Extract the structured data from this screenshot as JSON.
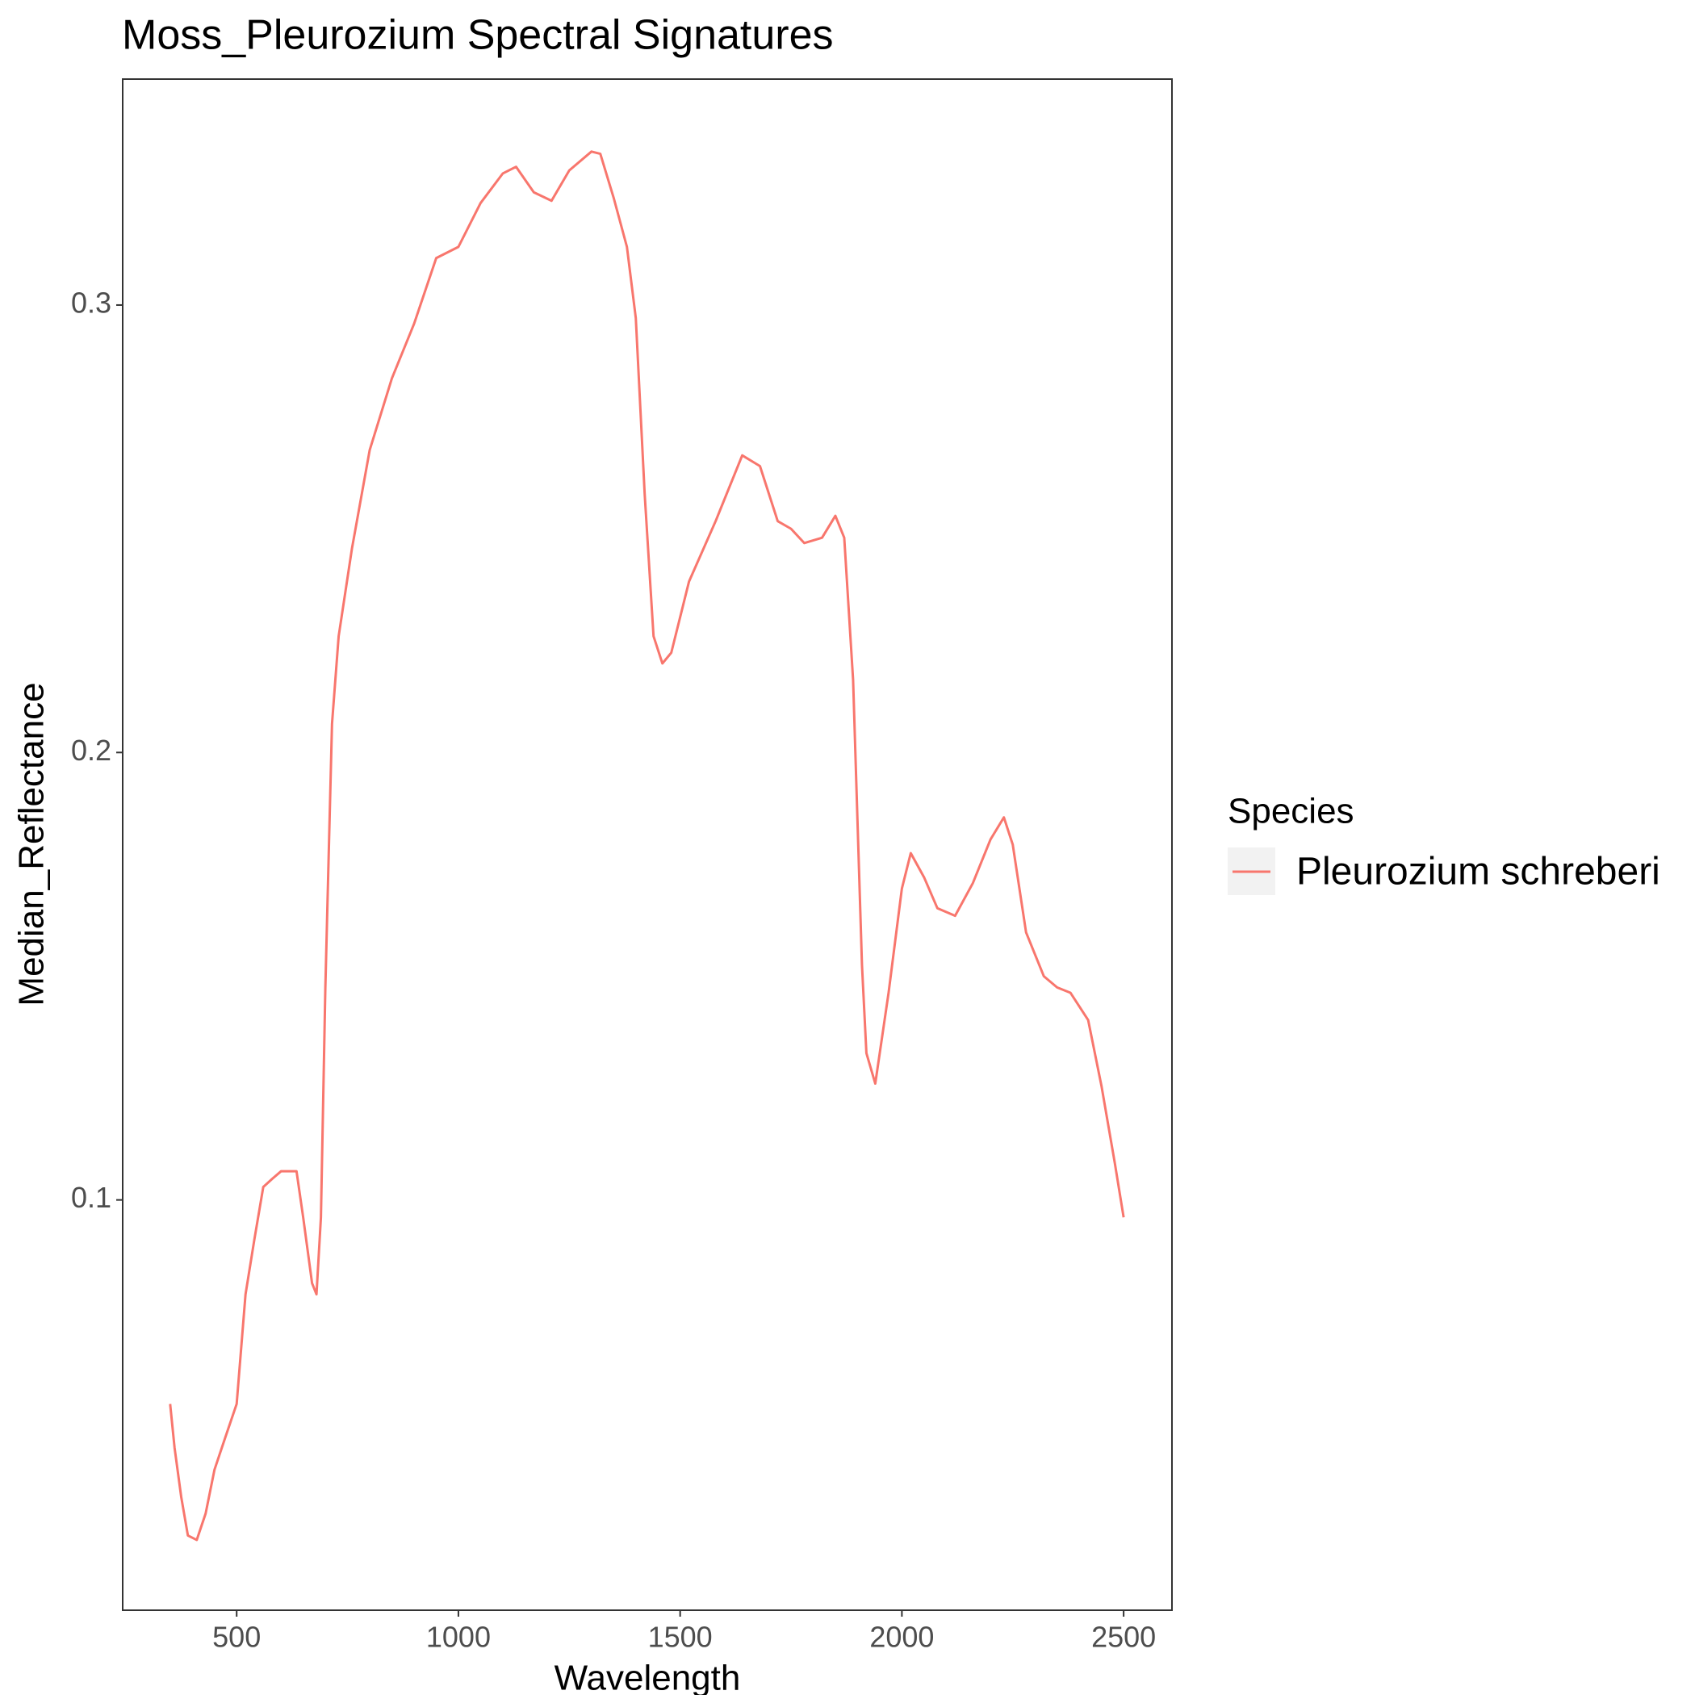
{
  "chart_data": {
    "type": "line",
    "title": "Moss_Pleurozium Spectral Signatures",
    "x_label": "Wavelength",
    "y_label": "Median_Reflectance",
    "legend_title": "Species",
    "x": [
      350,
      360,
      375,
      390,
      410,
      430,
      450,
      475,
      500,
      520,
      540,
      560,
      580,
      600,
      620,
      635,
      650,
      670,
      680,
      690,
      700,
      715,
      730,
      760,
      800,
      850,
      900,
      950,
      1000,
      1050,
      1100,
      1130,
      1170,
      1210,
      1250,
      1300,
      1320,
      1350,
      1380,
      1400,
      1420,
      1440,
      1460,
      1480,
      1520,
      1580,
      1640,
      1680,
      1720,
      1750,
      1780,
      1820,
      1850,
      1870,
      1890,
      1910,
      1920,
      1940,
      1970,
      2000,
      2020,
      2050,
      2080,
      2120,
      2160,
      2200,
      2230,
      2250,
      2280,
      2320,
      2350,
      2380,
      2420,
      2450,
      2480,
      2500
    ],
    "series": [
      {
        "name": "Pleurozium schreberi",
        "color": "#f8766d",
        "values": [
          0.0544,
          0.0446,
          0.0336,
          0.025,
          0.024,
          0.0299,
          0.0397,
          0.0471,
          0.0544,
          0.0789,
          0.0912,
          0.1029,
          0.1047,
          0.1064,
          0.1064,
          0.1064,
          0.0961,
          0.0814,
          0.0789,
          0.0961,
          0.1475,
          0.2064,
          0.226,
          0.2456,
          0.2676,
          0.2836,
          0.2958,
          0.3105,
          0.313,
          0.3228,
          0.3294,
          0.3309,
          0.3252,
          0.3233,
          0.3301,
          0.3343,
          0.3338,
          0.324,
          0.313,
          0.2971,
          0.2578,
          0.226,
          0.2199,
          0.2223,
          0.2382,
          0.2517,
          0.2664,
          0.264,
          0.2517,
          0.25,
          0.2468,
          0.248,
          0.2529,
          0.248,
          0.2162,
          0.1525,
          0.1328,
          0.126,
          0.1463,
          0.1696,
          0.1775,
          0.1721,
          0.1652,
          0.1635,
          0.1708,
          0.1806,
          0.1855,
          0.1794,
          0.1598,
          0.15,
          0.1475,
          0.1463,
          0.1402,
          0.1255,
          0.1083,
          0.0961
        ]
      }
    ],
    "xlim": [
      243,
      2609
    ],
    "ylim": [
      0.0083,
      0.3505
    ],
    "xticks": [
      500,
      1000,
      1500,
      2000,
      2500
    ],
    "yticks": [
      0.1,
      0.2,
      0.3
    ]
  }
}
